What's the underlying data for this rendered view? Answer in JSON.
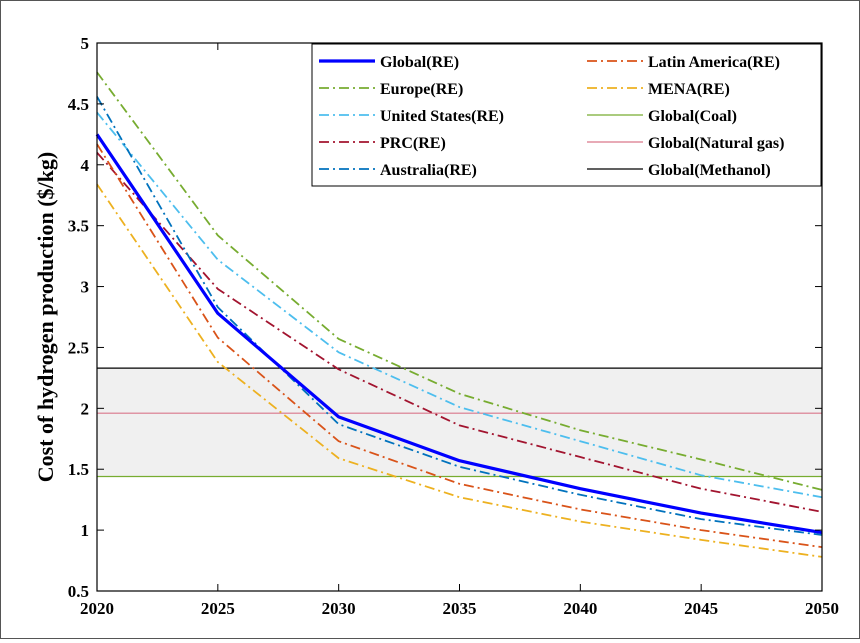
{
  "chart_data": {
    "type": "line",
    "title": "",
    "xlabel": "",
    "ylabel": "Cost of hydrogen production ($/kg)",
    "xlim": [
      2020,
      2050
    ],
    "ylim": [
      0.5,
      5
    ],
    "xticks": [
      "2020",
      "2025",
      "2030",
      "2035",
      "2040",
      "2045",
      "2050"
    ],
    "yticks": [
      "0.5",
      "1",
      "1.5",
      "2",
      "2.5",
      "3",
      "3.5",
      "4",
      "4.5",
      "5"
    ],
    "grid": false,
    "legend_position": "top-right",
    "x": [
      2020,
      2025,
      2030,
      2035,
      2040,
      2045,
      2050
    ],
    "series": [
      {
        "name": "Global(RE)",
        "color": "#0000ff",
        "style": "solid",
        "values": [
          4.25,
          2.78,
          1.93,
          1.57,
          1.34,
          1.14,
          0.98
        ]
      },
      {
        "name": "Europe(RE)",
        "color": "#77ac30",
        "style": "dashdot",
        "values": [
          4.76,
          3.42,
          2.57,
          2.12,
          1.82,
          1.58,
          1.33
        ]
      },
      {
        "name": "United States(RE)",
        "color": "#4dbeee",
        "style": "dashdot",
        "values": [
          4.43,
          3.22,
          2.46,
          2.01,
          1.73,
          1.45,
          1.27
        ]
      },
      {
        "name": "PRC(RE)",
        "color": "#a2142f",
        "style": "dashdot",
        "values": [
          4.1,
          2.98,
          2.32,
          1.86,
          1.6,
          1.34,
          1.15
        ]
      },
      {
        "name": "Australia(RE)",
        "color": "#0072bd",
        "style": "dashdot",
        "values": [
          4.56,
          2.83,
          1.87,
          1.52,
          1.29,
          1.09,
          0.96
        ]
      },
      {
        "name": "Latin America(RE)",
        "color": "#d95319",
        "style": "dashdot",
        "values": [
          4.17,
          2.58,
          1.73,
          1.38,
          1.17,
          1.0,
          0.86
        ]
      },
      {
        "name": "MENA(RE)",
        "color": "#edb120",
        "style": "dashdot",
        "values": [
          3.84,
          2.38,
          1.59,
          1.27,
          1.07,
          0.92,
          0.78
        ]
      },
      {
        "name": "Global(Coal)",
        "color": "#77ac30",
        "style": "solid",
        "values": [
          1.44,
          1.44,
          1.44,
          1.44,
          1.44,
          1.44,
          1.44
        ]
      },
      {
        "name": "Global(Natural gas)",
        "color": "#d9778a",
        "style": "solid",
        "values": [
          1.96,
          1.96,
          1.96,
          1.96,
          1.96,
          1.96,
          1.96
        ]
      },
      {
        "name": "Global(Methanol)",
        "color": "#000000",
        "style": "solid",
        "values": [
          2.33,
          2.33,
          2.33,
          2.33,
          2.33,
          2.33,
          2.33
        ]
      }
    ],
    "band": {
      "from": 1.44,
      "to": 2.33,
      "color": "#f0f0f0"
    }
  }
}
